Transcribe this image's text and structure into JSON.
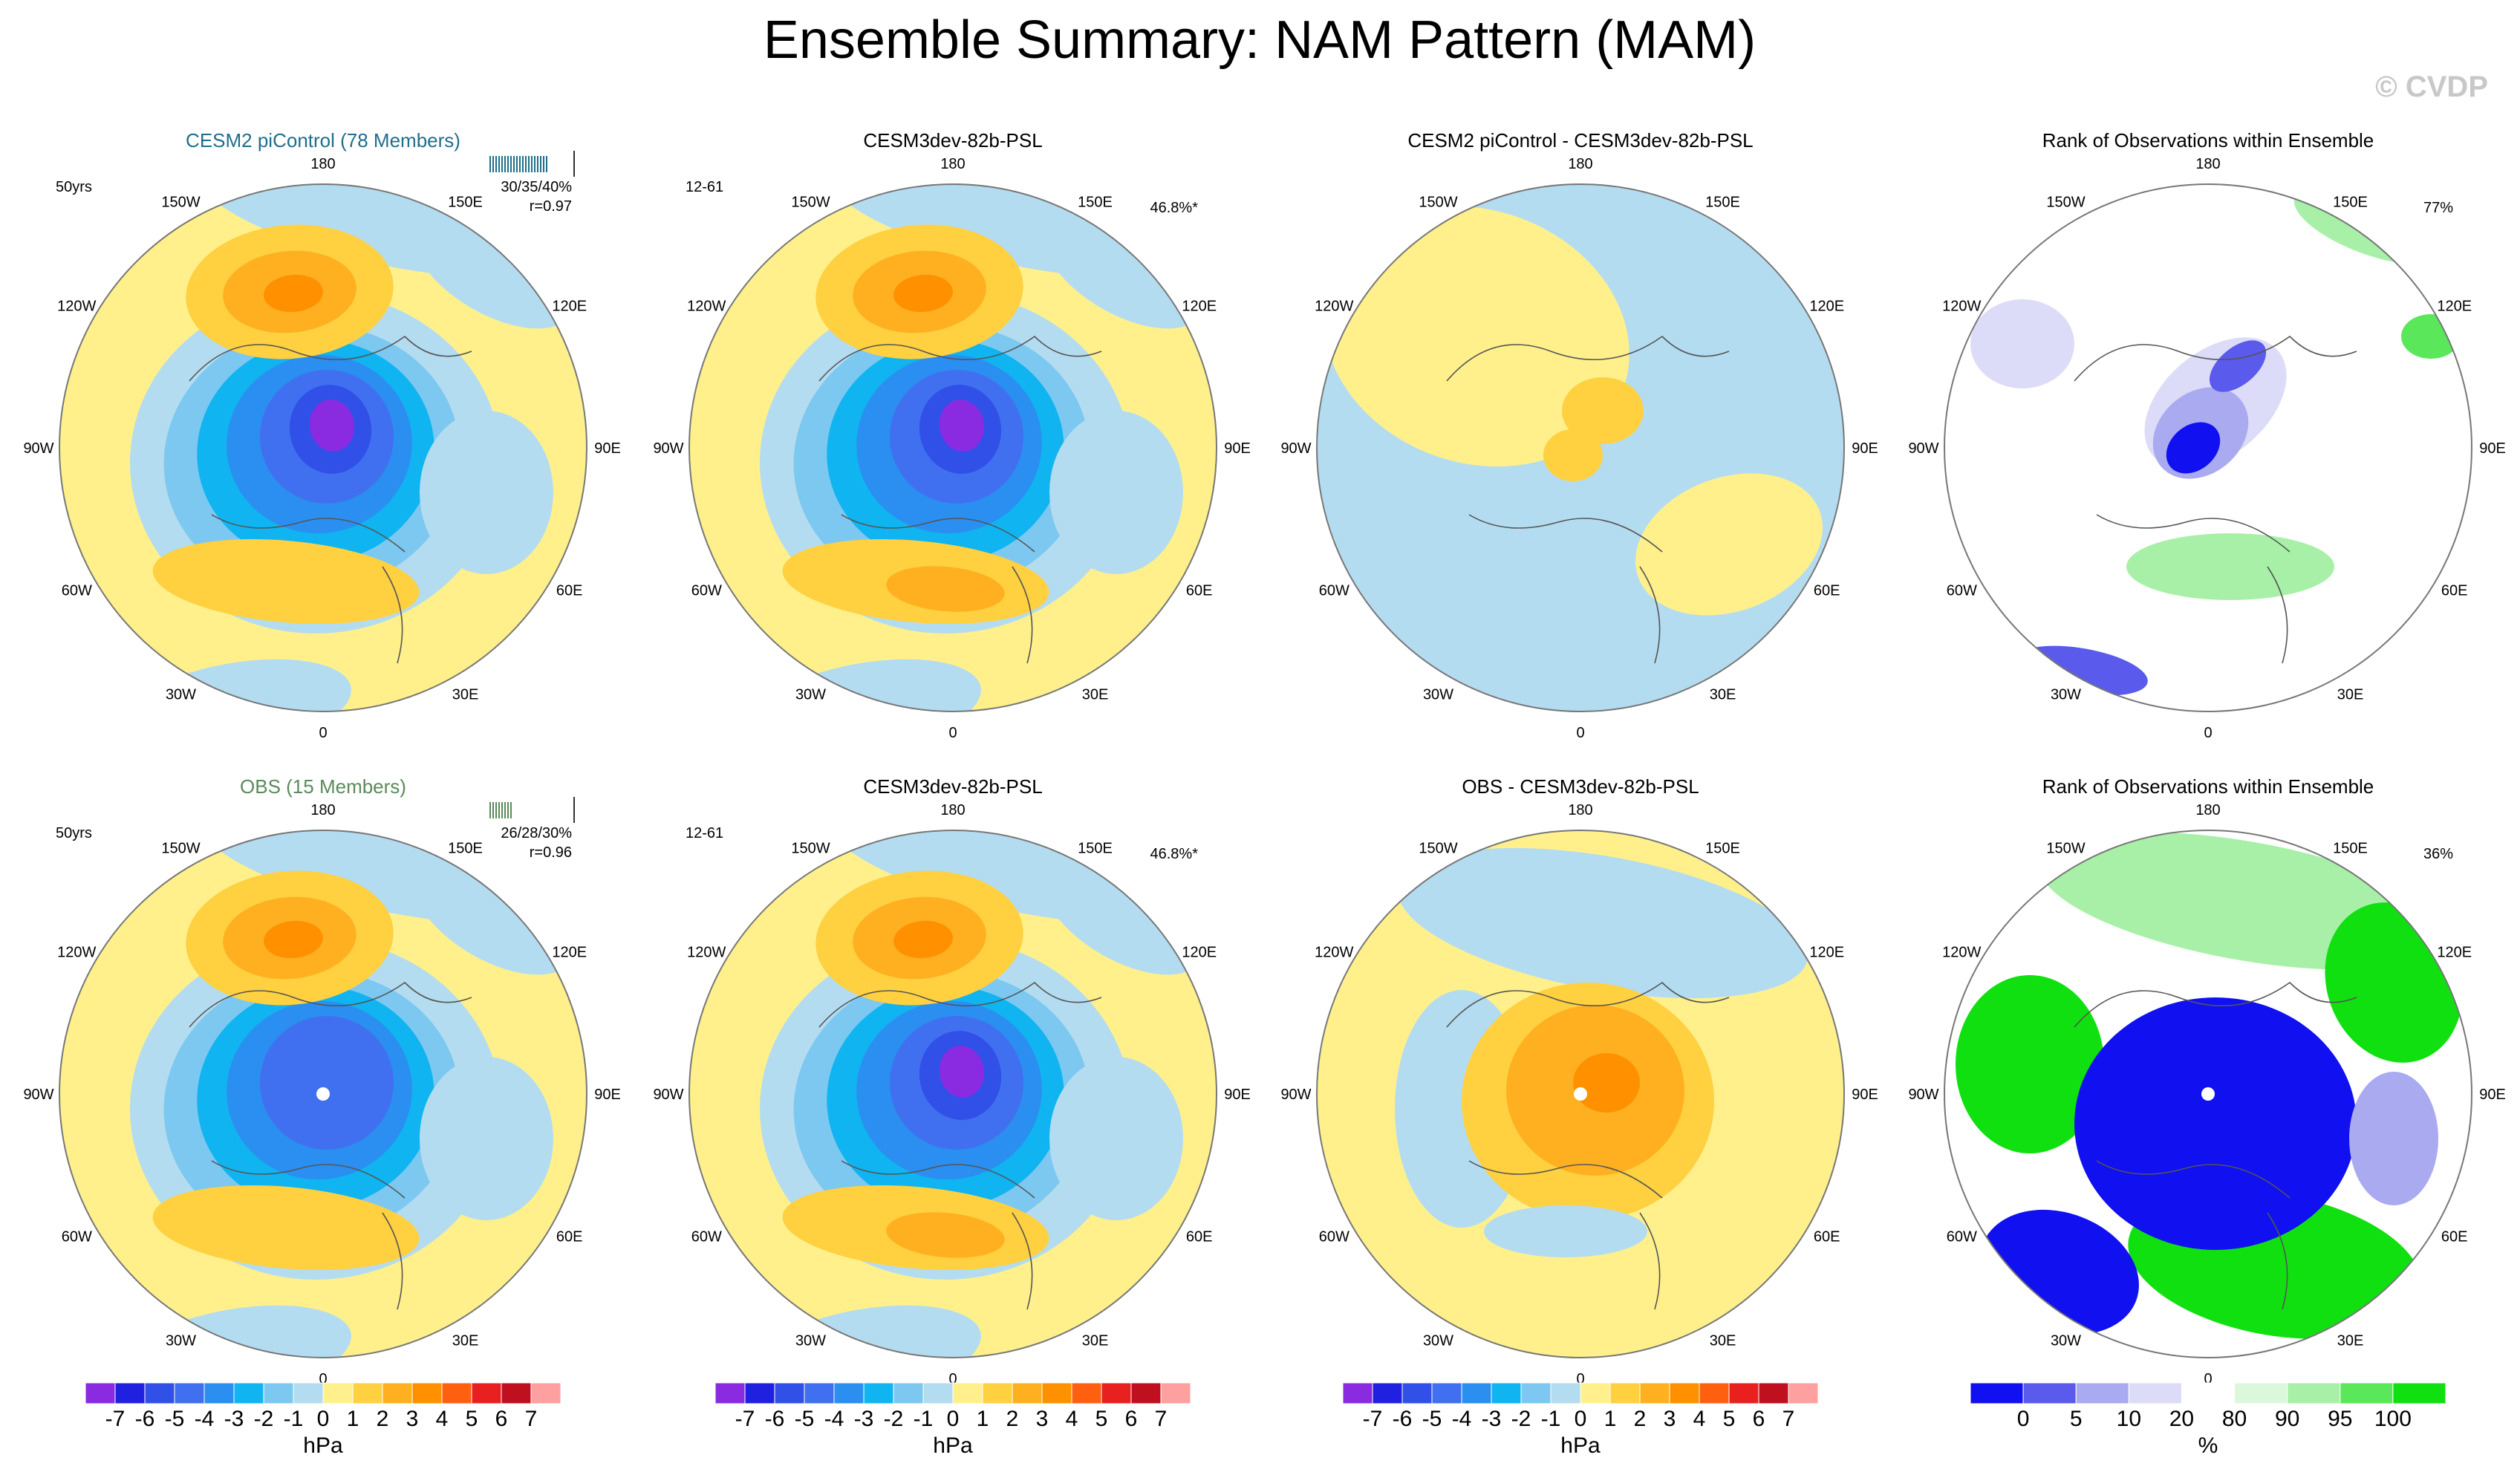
{
  "figure": {
    "title": "Ensemble Summary: NAM Pattern (MAM)",
    "watermark": "© CVDP"
  },
  "chart_data": {
    "type": "heatmap",
    "projection": "north-polar-stereographic",
    "lon_labels": [
      "180",
      "150E",
      "120E",
      "90E",
      "60E",
      "30E",
      "0",
      "30W",
      "60W",
      "90W",
      "120W",
      "150W"
    ],
    "panels": [
      {
        "id": "r1c1",
        "title": "CESM2 piControl (78 Members)",
        "title_color": "#1f6e8c",
        "left_label": "50yrs",
        "stats": "30/35/40%",
        "corr": "r=0.97",
        "colorbar": "psl",
        "pattern": "cesm2"
      },
      {
        "id": "r1c2",
        "title": "CESM3dev-82b-PSL",
        "left_label": "12-61",
        "right_label": "46.8%*",
        "colorbar": "psl",
        "pattern": "cesm3"
      },
      {
        "id": "r1c3",
        "title": "CESM2 piControl - CESM3dev-82b-PSL",
        "colorbar": "psl",
        "pattern": "diff1"
      },
      {
        "id": "r1c4",
        "title": "Rank of Observations within Ensemble",
        "right_label": "77%",
        "colorbar": "rank",
        "pattern": "rank1"
      },
      {
        "id": "r2c1",
        "title": "OBS (15 Members)",
        "title_color": "#5b8a5b",
        "left_label": "50yrs",
        "stats": "26/28/30%",
        "corr": "r=0.96",
        "colorbar": "psl",
        "pattern": "obs"
      },
      {
        "id": "r2c2",
        "title": "CESM3dev-82b-PSL",
        "left_label": "12-61",
        "right_label": "46.8%*",
        "colorbar": "psl",
        "pattern": "cesm3"
      },
      {
        "id": "r2c3",
        "title": "OBS - CESM3dev-82b-PSL",
        "colorbar": "psl",
        "pattern": "diff2"
      },
      {
        "id": "r2c4",
        "title": "Rank of Observations within Ensemble",
        "right_label": "36%",
        "colorbar": "rank",
        "pattern": "rank2"
      }
    ],
    "colorbars": {
      "psl": {
        "unit": "hPa",
        "levels": [
          "-7",
          "-6",
          "-5",
          "-4",
          "-3",
          "-2",
          "-1",
          "0",
          "1",
          "2",
          "3",
          "4",
          "5",
          "6",
          "7"
        ],
        "colors": [
          "#8a2be2",
          "#2020e0",
          "#3050e8",
          "#4070f0",
          "#2a8ff0",
          "#10b4f0",
          "#7cc8f0",
          "#b4dcf0",
          "#fff08c",
          "#ffd040",
          "#ffb020",
          "#ff9000",
          "#ff6010",
          "#e82020",
          "#c01020",
          "#ffa0a0"
        ]
      },
      "rank": {
        "unit": "%",
        "levels": [
          "0",
          "5",
          "10",
          "20",
          "80",
          "90",
          "95",
          "100"
        ],
        "colors": [
          "#1010f0",
          "#5a5aec",
          "#aaaaf0",
          "#dcdcf8",
          "#ffffff",
          "#dcf8dc",
          "#a8f0a8",
          "#5ae85a",
          "#10e010"
        ]
      }
    }
  }
}
